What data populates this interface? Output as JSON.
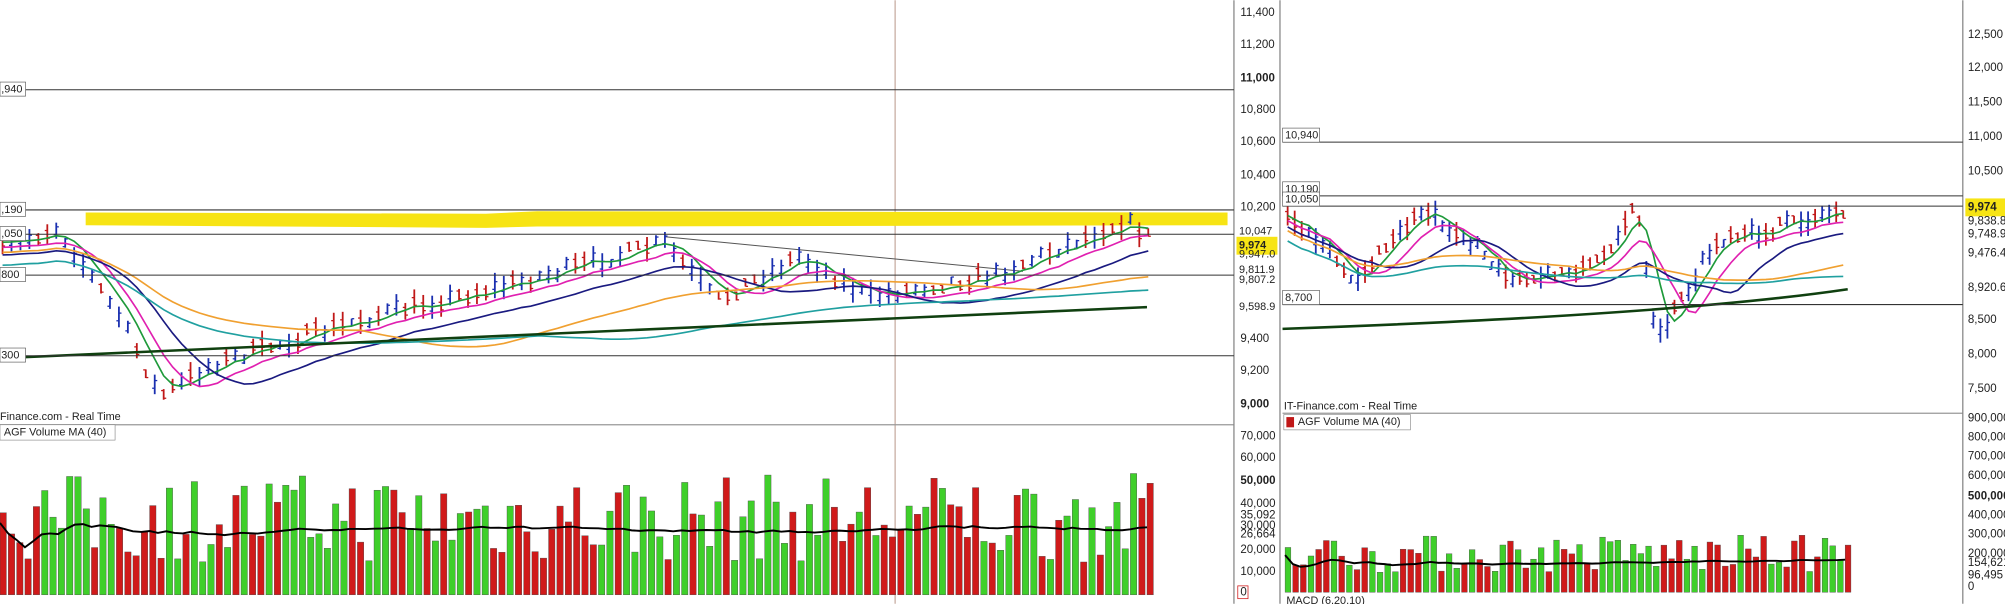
{
  "left": {
    "price_axis": [
      "11,400",
      "11,200",
      "11,000",
      "10,800",
      "10,600",
      "10,400",
      "10,200",
      "9,400",
      "9,200",
      "9,000"
    ],
    "levels": [
      ",940",
      ",190",
      ",050",
      "800",
      "300"
    ],
    "tags": [
      "10,047",
      "9,974",
      "9,947.0",
      "9,811.9",
      "9,807.2",
      "9,598.9"
    ],
    "source": "Finance.com - Real Time",
    "volume_legend": "AGF Volume   MA (40)",
    "volume_axis": [
      "70,000",
      "60,000",
      "50,000",
      "40,000",
      "35,092",
      "30,000",
      "26,664",
      "20,000",
      "10,000",
      "0"
    ]
  },
  "right": {
    "price_axis": [
      "12,500",
      "12,000",
      "11,500",
      "11,000",
      "10,500",
      "9,974",
      "9,838.8",
      "9,748.9",
      "9,476.4",
      "8,920.6",
      "8,500",
      "8,000",
      "7,500"
    ],
    "levels": [
      "10,940",
      "10,190",
      "10,050",
      "8,700"
    ],
    "source": "IT-Finance.com - Real Time",
    "volume_legend": "AGF Volume   MA (40)",
    "volume_axis": [
      "900,000",
      "800,000",
      "700,000",
      "600,000",
      "500,000",
      "400,000",
      "300,000",
      "200,000",
      "154,621",
      "96,495",
      "0"
    ],
    "macd": "MACD (6,20,10)"
  }
}
